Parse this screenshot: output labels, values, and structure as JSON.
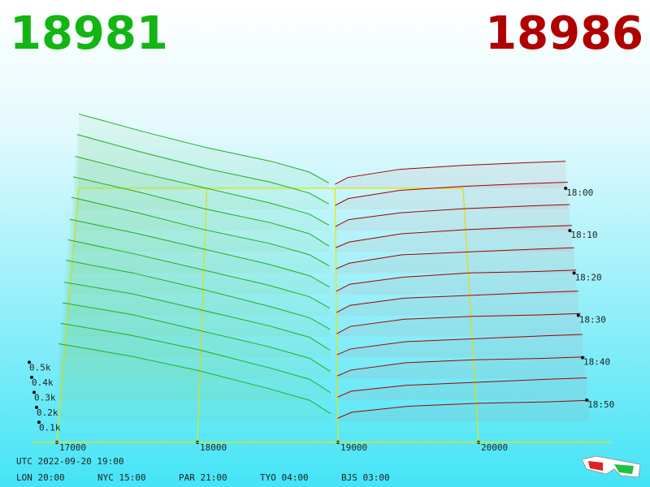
{
  "header": {
    "bid_price": "18981",
    "ask_price": "18986"
  },
  "chart_data": {
    "type": "depth3d",
    "xlim": [
      17000,
      21000
    ],
    "xticks": [
      17000,
      18000,
      19000,
      20000
    ],
    "zlim": [
      0,
      1
    ],
    "zticks": [
      {
        "value": 0.1,
        "label": "0.1k"
      },
      {
        "value": 0.2,
        "label": "0.2k"
      },
      {
        "value": 0.3,
        "label": "0.3k"
      },
      {
        "value": 0.4,
        "label": "0.4k"
      },
      {
        "value": 0.5,
        "label": "0.5k"
      }
    ],
    "time_ticks": [
      "18:00",
      "18:10",
      "18:20",
      "18:30",
      "18:40",
      "18:50"
    ],
    "bid_color": "#1fb01f",
    "ask_color": "#a00000",
    "bid_prices": [
      17000,
      17500,
      18000,
      18500,
      18800,
      18950
    ],
    "ask_prices": [
      19000,
      19100,
      19500,
      20000,
      20500,
      20800
    ],
    "bids": [
      [
        0.55,
        0.42,
        0.3,
        0.2,
        0.12,
        0.04
      ],
      [
        0.55,
        0.42,
        0.3,
        0.2,
        0.12,
        0.04
      ],
      [
        0.54,
        0.42,
        0.31,
        0.2,
        0.12,
        0.04
      ],
      [
        0.54,
        0.43,
        0.31,
        0.21,
        0.13,
        0.04
      ],
      [
        0.54,
        0.43,
        0.31,
        0.21,
        0.13,
        0.05
      ],
      [
        0.53,
        0.43,
        0.32,
        0.21,
        0.13,
        0.05
      ],
      [
        0.53,
        0.43,
        0.32,
        0.21,
        0.13,
        0.05
      ],
      [
        0.53,
        0.44,
        0.33,
        0.21,
        0.13,
        0.05
      ],
      [
        0.52,
        0.44,
        0.33,
        0.22,
        0.14,
        0.05
      ],
      [
        0.52,
        0.44,
        0.33,
        0.22,
        0.14,
        0.05
      ],
      [
        0.52,
        0.44,
        0.34,
        0.22,
        0.14,
        0.05
      ],
      [
        0.52,
        0.44,
        0.34,
        0.22,
        0.14,
        0.05
      ]
    ],
    "asks": [
      [
        0.03,
        0.08,
        0.14,
        0.17,
        0.19,
        0.2
      ],
      [
        0.03,
        0.08,
        0.14,
        0.17,
        0.19,
        0.2
      ],
      [
        0.03,
        0.08,
        0.13,
        0.16,
        0.18,
        0.19
      ],
      [
        0.03,
        0.07,
        0.13,
        0.16,
        0.18,
        0.19
      ],
      [
        0.03,
        0.07,
        0.13,
        0.15,
        0.17,
        0.18
      ],
      [
        0.02,
        0.07,
        0.12,
        0.15,
        0.16,
        0.17
      ],
      [
        0.02,
        0.07,
        0.12,
        0.14,
        0.16,
        0.17
      ],
      [
        0.02,
        0.07,
        0.12,
        0.14,
        0.15,
        0.16
      ],
      [
        0.02,
        0.06,
        0.11,
        0.13,
        0.15,
        0.16
      ],
      [
        0.02,
        0.06,
        0.11,
        0.13,
        0.14,
        0.15
      ],
      [
        0.02,
        0.06,
        0.1,
        0.12,
        0.14,
        0.15
      ],
      [
        0.02,
        0.06,
        0.1,
        0.12,
        0.13,
        0.14
      ]
    ]
  },
  "footer": {
    "utc": "UTC 2022-09-20 19:00",
    "clocks": [
      "LON 20:00",
      "NYC 15:00",
      "PAR 21:00",
      "TYO 04:00",
      "BJS 03:00"
    ]
  }
}
